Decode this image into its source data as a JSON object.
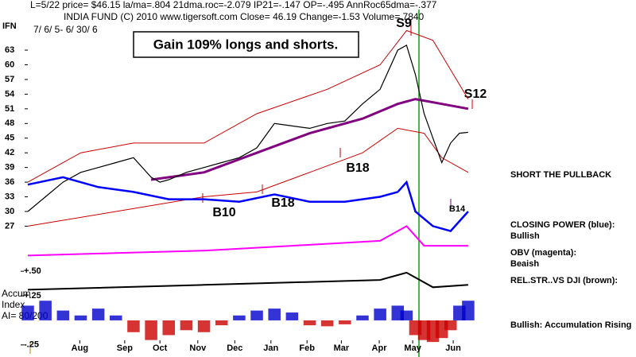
{
  "header": {
    "line1": "L=5/22  price= $46.15  la/ma=.804 21dma.roc=-2.079 IP21=-.147 OP=-.495 AnnRoc65dma=-.377",
    "line2": "INDIA FUND  (C) 2010 www.tigersoft.com   Close=  46.19  Change=-1.53  Volume= 7840",
    "symbol": "IFN",
    "dates": "7/ 6/ 5- 6/ 30/ 6",
    "banner": "Gain 109% longs and shorts."
  },
  "side_notes": [
    "SHORT THE PULLBACK",
    "CLOSING POWER (blue):",
    "Bullish",
    "OBV (magenta):",
    "Beaish",
    "REL.STR..VS DJI (brown):",
    "Bullish: Accumulation Rising"
  ],
  "accum_label": [
    "Accum",
    "Index",
    "AI= 80/200"
  ],
  "chart_data": [
    {
      "type": "line",
      "xlim": [
        0,
        51
      ],
      "xticks": [
        {
          "value": 5.9,
          "label": "Aug"
        },
        {
          "value": 11,
          "label": "Sep"
        },
        {
          "value": 15,
          "label": "Oct"
        },
        {
          "value": 19.3,
          "label": "Nov"
        },
        {
          "value": 23.5,
          "label": "Dec"
        },
        {
          "value": 27.6,
          "label": "Jan"
        },
        {
          "value": 31.7,
          "label": "Feb"
        },
        {
          "value": 35.6,
          "label": "Mar"
        },
        {
          "value": 39.9,
          "label": "Apr"
        },
        {
          "value": 43.7,
          "label": "May"
        },
        {
          "value": 48.3,
          "label": "Jun"
        }
      ],
      "ylim": [
        10,
        70
      ],
      "yticks": [
        27,
        30,
        33,
        36,
        39,
        42,
        45,
        48,
        51,
        54,
        57,
        60,
        63
      ],
      "annotations": [
        "S9",
        "S12",
        "B18",
        "B18",
        "B10",
        "B14"
      ],
      "series": [
        {
          "color": "#cc0000",
          "width": 1,
          "x": [
            0,
            6,
            12,
            20,
            26,
            34,
            40,
            43,
            46,
            50
          ],
          "values": [
            36,
            42,
            44,
            44,
            50,
            55,
            60,
            67,
            65,
            53
          ]
        },
        {
          "color": "#cc0000",
          "width": 1,
          "x": [
            0,
            10,
            20,
            26,
            32,
            38,
            42,
            45,
            47,
            50
          ],
          "values": [
            27,
            30,
            33,
            34,
            38,
            42,
            47,
            46,
            41,
            38
          ]
        },
        {
          "color": "#800080",
          "width": 3,
          "x": [
            14,
            20,
            26,
            32,
            38,
            42,
            44,
            47,
            50
          ],
          "values": [
            36.5,
            38,
            42,
            46,
            49,
            52,
            53,
            52,
            51
          ]
        },
        {
          "color": "#000000",
          "width": 1.2,
          "x": [
            0,
            2,
            4,
            6,
            8,
            10,
            12,
            14,
            15,
            16,
            18,
            20,
            22,
            24,
            26,
            28,
            30,
            32,
            34,
            36,
            38,
            40,
            42,
            43,
            44,
            45,
            46,
            47,
            48,
            49,
            50
          ],
          "values": [
            30,
            33,
            36,
            38,
            39,
            40,
            41,
            37,
            36,
            36.5,
            38,
            39,
            40,
            41,
            43,
            48,
            47.5,
            47,
            48,
            48.5,
            52,
            55,
            63,
            64,
            58,
            50,
            45,
            40,
            44,
            46,
            46.2
          ]
        },
        {
          "color": "#0000ff",
          "width": 2.5,
          "x": [
            0,
            4,
            8,
            12,
            16,
            20,
            24,
            28,
            32,
            36,
            40,
            42,
            43,
            44,
            46,
            48,
            50
          ],
          "values": [
            35.5,
            37,
            35,
            34,
            32.5,
            32.5,
            32,
            33.5,
            32,
            32,
            33,
            34,
            36,
            30,
            27,
            26,
            30
          ]
        },
        {
          "color": "#ff00ff",
          "width": 2,
          "x": [
            0,
            10,
            20,
            30,
            40,
            43,
            45,
            50
          ],
          "values": [
            21,
            21.5,
            22,
            23,
            24,
            27,
            23,
            23
          ]
        },
        {
          "color": "#000000",
          "width": 2,
          "x": [
            0,
            20,
            40,
            43,
            46,
            50
          ],
          "values": [
            14,
            15,
            16,
            17.5,
            14.5,
            15
          ]
        }
      ]
    },
    {
      "type": "bar",
      "xlim": [
        0,
        51
      ],
      "ylim": [
        -0.3,
        0.55
      ],
      "yticks": [
        {
          "value": 0.5,
          "label": "+.50"
        },
        {
          "value": 0.25,
          "label": "+.25"
        },
        {
          "value": -0.25,
          "label": "-.25"
        }
      ],
      "colors": {
        "positive": "#0000cc",
        "negative": "#cc0000"
      },
      "x": [
        0,
        2,
        4,
        6,
        8,
        10,
        12,
        14,
        16,
        18,
        20,
        22,
        24,
        26,
        28,
        30,
        32,
        34,
        36,
        38,
        40,
        42,
        43,
        44,
        45,
        46,
        47,
        48,
        49,
        50
      ],
      "values": [
        0.15,
        0.2,
        0.1,
        0.05,
        0.12,
        0.05,
        -0.12,
        -0.2,
        -0.15,
        -0.1,
        -0.12,
        -0.05,
        0.05,
        0.1,
        0.12,
        0.08,
        -0.05,
        -0.06,
        -0.04,
        0.05,
        0.12,
        0.15,
        0.1,
        -0.15,
        -0.2,
        -0.22,
        -0.18,
        -0.1,
        0.15,
        0.2
      ]
    }
  ]
}
